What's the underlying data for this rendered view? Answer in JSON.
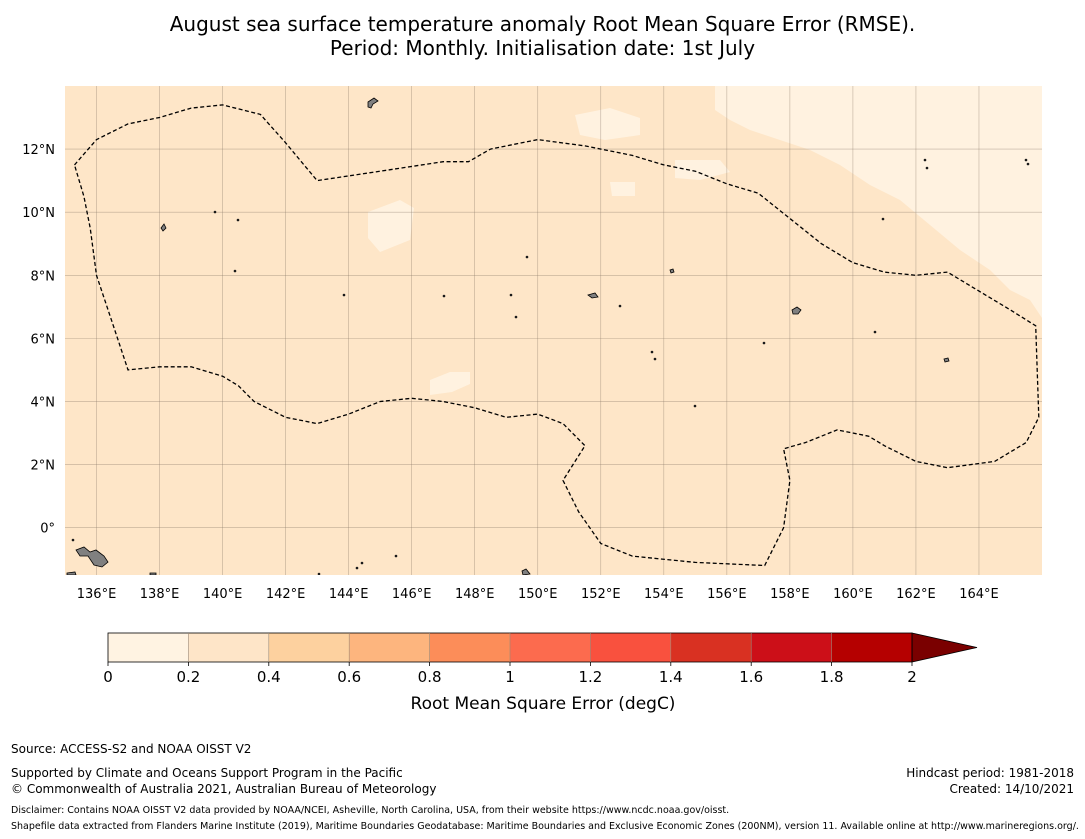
{
  "title": {
    "line1": "August sea surface temperature anomaly Root Mean Square Error (RMSE).",
    "line2": "Period: Monthly. Initialisation date: 1st July"
  },
  "map": {
    "lat_range": [
      -1.5,
      14
    ],
    "lon_range": [
      135,
      166
    ],
    "lat_ticks": [
      "12°N",
      "10°N",
      "8°N",
      "6°N",
      "4°N",
      "2°N",
      "0°"
    ],
    "lat_tick_values": [
      12,
      10,
      8,
      6,
      4,
      2,
      0
    ],
    "lon_ticks": [
      "136°E",
      "138°E",
      "140°E",
      "142°E",
      "144°E",
      "146°E",
      "148°E",
      "150°E",
      "152°E",
      "154°E",
      "156°E",
      "158°E",
      "160°E",
      "162°E",
      "164°E"
    ],
    "lon_tick_values": [
      136,
      138,
      140,
      142,
      144,
      146,
      148,
      150,
      152,
      154,
      156,
      158,
      160,
      162,
      164
    ],
    "background_color": "#fee6c8",
    "light_color": "#fff2e0",
    "eez_boundary": [
      [
        135.3,
        11.5
      ],
      [
        136.0,
        12.3
      ],
      [
        137.0,
        12.8
      ],
      [
        138.0,
        13.0
      ],
      [
        139.0,
        13.3
      ],
      [
        140.0,
        13.4
      ],
      [
        141.2,
        13.1
      ],
      [
        142.0,
        12.2
      ],
      [
        143.0,
        11.0
      ],
      [
        145.0,
        11.3
      ],
      [
        147.0,
        11.6
      ],
      [
        147.8,
        11.6
      ],
      [
        148.5,
        12.0
      ],
      [
        150.0,
        12.3
      ],
      [
        151.5,
        12.1
      ],
      [
        153.0,
        11.8
      ],
      [
        154.0,
        11.5
      ],
      [
        155.0,
        11.3
      ],
      [
        156.0,
        10.9
      ],
      [
        157.0,
        10.6
      ],
      [
        158.0,
        9.8
      ],
      [
        159.0,
        9.0
      ],
      [
        160.0,
        8.4
      ],
      [
        161.0,
        8.1
      ],
      [
        162.0,
        8.0
      ],
      [
        163.0,
        8.1
      ],
      [
        164.0,
        7.5
      ],
      [
        165.0,
        6.9
      ],
      [
        165.8,
        6.4
      ],
      [
        165.9,
        3.5
      ],
      [
        165.5,
        2.7
      ],
      [
        164.5,
        2.1
      ],
      [
        163.0,
        1.9
      ],
      [
        162.0,
        2.1
      ],
      [
        161.0,
        2.6
      ],
      [
        160.5,
        2.9
      ],
      [
        159.5,
        3.1
      ],
      [
        158.5,
        2.7
      ],
      [
        157.8,
        2.5
      ],
      [
        158.0,
        1.5
      ],
      [
        157.8,
        0.0
      ],
      [
        157.2,
        -1.2
      ],
      [
        155.0,
        -1.1
      ],
      [
        153.0,
        -0.9
      ],
      [
        152.0,
        -0.5
      ],
      [
        151.3,
        0.5
      ],
      [
        150.8,
        1.5
      ],
      [
        151.5,
        2.6
      ],
      [
        150.8,
        3.3
      ],
      [
        150.0,
        3.6
      ],
      [
        149.0,
        3.5
      ],
      [
        148.0,
        3.8
      ],
      [
        147.0,
        4.0
      ],
      [
        146.0,
        4.1
      ],
      [
        145.0,
        4.0
      ],
      [
        144.0,
        3.6
      ],
      [
        143.0,
        3.3
      ],
      [
        142.0,
        3.5
      ],
      [
        141.0,
        4.0
      ],
      [
        140.5,
        4.5
      ],
      [
        140.0,
        4.8
      ],
      [
        139.0,
        5.1
      ],
      [
        138.0,
        5.1
      ],
      [
        137.0,
        5.0
      ],
      [
        136.5,
        6.5
      ],
      [
        136.0,
        8.0
      ],
      [
        135.8,
        9.5
      ],
      [
        135.6,
        10.5
      ],
      [
        135.3,
        11.5
      ]
    ]
  },
  "colorbar": {
    "label": "Root Mean Square Error (degC)",
    "ticks": [
      "0",
      "0.2",
      "0.4",
      "0.6",
      "0.8",
      "1",
      "1.2",
      "1.4",
      "1.6",
      "1.8",
      "2"
    ],
    "colors": [
      "#fff3e2",
      "#fee5c8",
      "#fdd19f",
      "#fdb57e",
      "#fc8d59",
      "#fc6b4e",
      "#f9513e",
      "#d93122",
      "#cc0f18",
      "#b50000",
      "#7a0000"
    ]
  },
  "footer": {
    "source": "Source: ACCESS-S2 and NOAA OISST V2",
    "supported": "Supported by Climate and Oceans Support Program in the Pacific",
    "copyright": "© Commonwealth of Australia 2021, Australian Bureau of Meteorology",
    "hindcast": "Hindcast period: 1981-2018",
    "created": "Created: 14/10/2021",
    "disclaimer": "Disclaimer: Contains NOAA OISST V2 data provided by NOAA/NCEI, Asheville, North Carolina, USA, from their website https://www.ncdc.noaa.gov/oisst.",
    "shapefile": "Shapefile data extracted from Flanders Marine Institute (2019), Maritime Boundaries Geodatabase: Maritime Boundaries and Exclusive Economic Zones (200NM), version 11. Available online at http://www.marineregions.org/."
  }
}
